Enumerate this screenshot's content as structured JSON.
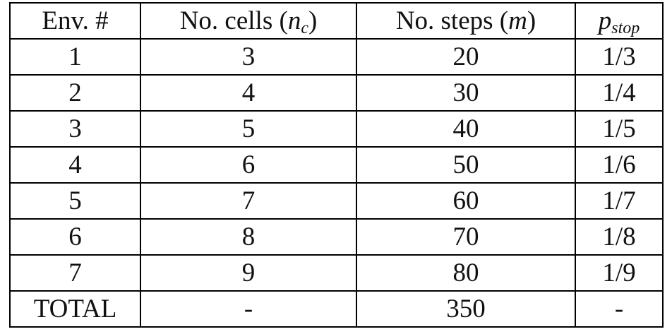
{
  "table": {
    "header": [
      [
        "Env. #"
      ],
      [
        "No. cells (",
        "n",
        "c",
        ")"
      ],
      [
        "No. steps (",
        "m",
        ")"
      ],
      [
        "p",
        "stop"
      ]
    ],
    "rows": [
      [
        1,
        3,
        20,
        "1/3"
      ],
      [
        2,
        4,
        30,
        "1/4"
      ],
      [
        3,
        5,
        40,
        "1/5"
      ],
      [
        4,
        6,
        50,
        "1/6"
      ],
      [
        5,
        7,
        60,
        "1/7"
      ],
      [
        6,
        8,
        70,
        "1/8"
      ],
      [
        7,
        9,
        80,
        "1/9"
      ],
      [
        "TOTAL",
        "-",
        350,
        "-"
      ]
    ]
  }
}
